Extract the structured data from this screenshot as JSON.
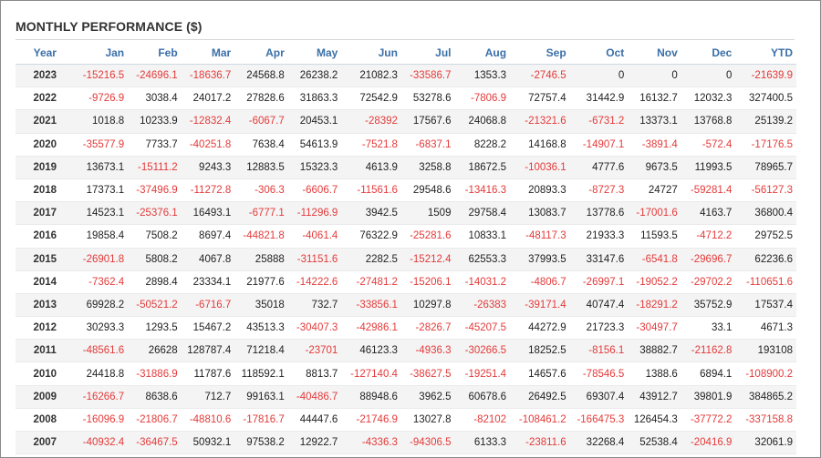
{
  "title": "MONTHLY PERFORMANCE ($)",
  "colors": {
    "negative": "#e43a3a",
    "header": "#3b6fa8",
    "text": "#222222"
  },
  "chart_data": {
    "type": "table",
    "title": "MONTHLY PERFORMANCE ($)",
    "columns": [
      "Year",
      "Jan",
      "Feb",
      "Mar",
      "Apr",
      "May",
      "Jun",
      "Jul",
      "Aug",
      "Sep",
      "Oct",
      "Nov",
      "Dec",
      "YTD"
    ],
    "rows": [
      [
        "2023",
        "-15216.5",
        "-24696.1",
        "-18636.7",
        "24568.8",
        "26238.2",
        "21082.3",
        "-33586.7",
        "1353.3",
        "-2746.5",
        "0",
        "0",
        "0",
        "-21639.9"
      ],
      [
        "2022",
        "-9726.9",
        "3038.4",
        "24017.2",
        "27828.6",
        "31863.3",
        "72542.9",
        "53278.6",
        "-7806.9",
        "72757.4",
        "31442.9",
        "16132.7",
        "12032.3",
        "327400.5"
      ],
      [
        "2021",
        "1018.8",
        "10233.9",
        "-12832.4",
        "-6067.7",
        "20453.1",
        "-28392",
        "17567.6",
        "24068.8",
        "-21321.6",
        "-6731.2",
        "13373.1",
        "13768.8",
        "25139.2"
      ],
      [
        "2020",
        "-35577.9",
        "7733.7",
        "-40251.8",
        "7638.4",
        "54613.9",
        "-7521.8",
        "-6837.1",
        "8228.2",
        "14168.8",
        "-14907.1",
        "-3891.4",
        "-572.4",
        "-17176.5"
      ],
      [
        "2019",
        "13673.1",
        "-15111.2",
        "9243.3",
        "12883.5",
        "15323.3",
        "4613.9",
        "3258.8",
        "18672.5",
        "-10036.1",
        "4777.6",
        "9673.5",
        "11993.5",
        "78965.7"
      ],
      [
        "2018",
        "17373.1",
        "-37496.9",
        "-11272.8",
        "-306.3",
        "-6606.7",
        "-11561.6",
        "29548.6",
        "-13416.3",
        "20893.3",
        "-8727.3",
        "24727",
        "-59281.4",
        "-56127.3"
      ],
      [
        "2017",
        "14523.1",
        "-25376.1",
        "16493.1",
        "-6777.1",
        "-11296.9",
        "3942.5",
        "1509",
        "29758.4",
        "13083.7",
        "13778.6",
        "-17001.6",
        "4163.7",
        "36800.4"
      ],
      [
        "2016",
        "19858.4",
        "7508.2",
        "8697.4",
        "-44821.8",
        "-4061.4",
        "76322.9",
        "-25281.6",
        "10833.1",
        "-48117.3",
        "21933.3",
        "11593.5",
        "-4712.2",
        "29752.5"
      ],
      [
        "2015",
        "-26901.8",
        "5808.2",
        "4067.8",
        "25888",
        "-31151.6",
        "2282.5",
        "-15212.4",
        "62553.3",
        "37993.5",
        "33147.6",
        "-6541.8",
        "-29696.7",
        "62236.6"
      ],
      [
        "2014",
        "-7362.4",
        "2898.4",
        "23334.1",
        "21977.6",
        "-14222.6",
        "-27481.2",
        "-15206.1",
        "-14031.2",
        "-4806.7",
        "-26997.1",
        "-19052.2",
        "-29702.2",
        "-110651.6"
      ],
      [
        "2013",
        "69928.2",
        "-50521.2",
        "-6716.7",
        "35018",
        "732.7",
        "-33856.1",
        "10297.8",
        "-26383",
        "-39171.4",
        "40747.4",
        "-18291.2",
        "35752.9",
        "17537.4"
      ],
      [
        "2012",
        "30293.3",
        "1293.5",
        "15467.2",
        "43513.3",
        "-30407.3",
        "-42986.1",
        "-2826.7",
        "-45207.5",
        "44272.9",
        "21723.3",
        "-30497.7",
        "33.1",
        "4671.3"
      ],
      [
        "2011",
        "-48561.6",
        "26628",
        "128787.4",
        "71218.4",
        "-23701",
        "46123.3",
        "-4936.3",
        "-30266.5",
        "18252.5",
        "-8156.1",
        "38882.7",
        "-21162.8",
        "193108"
      ],
      [
        "2010",
        "24418.8",
        "-31886.9",
        "11787.6",
        "118592.1",
        "8813.7",
        "-127140.4",
        "-38627.5",
        "-19251.4",
        "14657.6",
        "-78546.5",
        "1388.6",
        "6894.1",
        "-108900.2"
      ],
      [
        "2009",
        "-16266.7",
        "8638.6",
        "712.7",
        "99163.1",
        "-40486.7",
        "88948.6",
        "3962.5",
        "60678.6",
        "26492.5",
        "69307.4",
        "43912.7",
        "39801.9",
        "384865.2"
      ],
      [
        "2008",
        "-16096.9",
        "-21806.7",
        "-48810.6",
        "-17816.7",
        "44447.6",
        "-21746.9",
        "13027.8",
        "-82102",
        "-108461.2",
        "-166475.3",
        "126454.3",
        "-37772.2",
        "-337158.8"
      ],
      [
        "2007",
        "-40932.4",
        "-36467.5",
        "50932.1",
        "97538.2",
        "12922.7",
        "-4336.3",
        "-94306.5",
        "6133.3",
        "-23811.6",
        "32268.4",
        "52538.4",
        "-20416.9",
        "32061.9"
      ]
    ]
  }
}
